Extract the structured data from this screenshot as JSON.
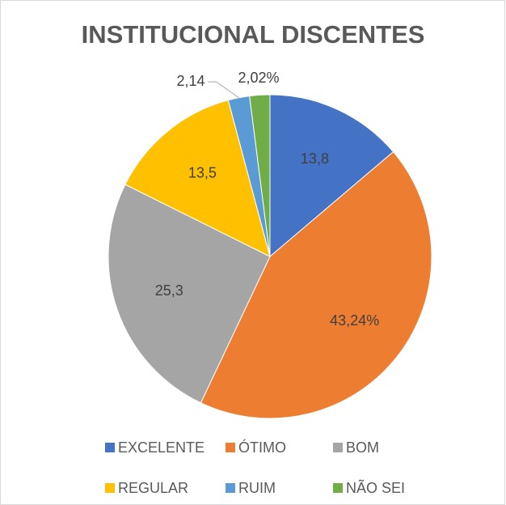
{
  "chart_data": {
    "type": "pie",
    "title": "INSTITUCIONAL DISCENTES",
    "categories": [
      "EXCELENTE",
      "ÓTIMO",
      "BOM",
      "REGULAR",
      "RUIM",
      "NÃO SEI"
    ],
    "values": [
      13.8,
      43.24,
      25.3,
      13.5,
      2.14,
      2.02
    ],
    "value_labels": [
      "13,8",
      "43,24%",
      "25,3",
      "13,5",
      "2,14",
      "2,02%"
    ],
    "colors": [
      "#4472c4",
      "#ed7d31",
      "#a5a5a5",
      "#ffc000",
      "#5b9bd5",
      "#70ad47"
    ],
    "legend": "bottom"
  }
}
